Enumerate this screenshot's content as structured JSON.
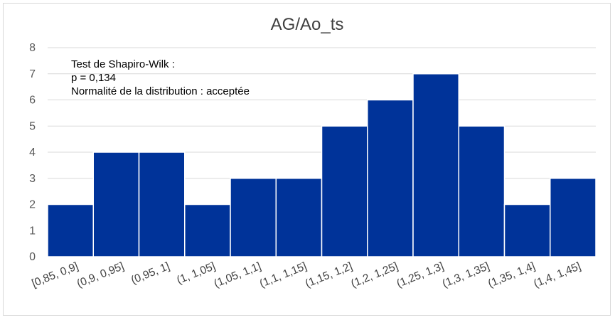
{
  "chart_data": {
    "type": "bar",
    "title": "AG/Ao_ts",
    "categories": [
      "[0,85, 0,9]",
      "(0,9, 0,95]",
      "(0,95, 1]",
      "(1, 1,05]",
      "(1,05, 1,1]",
      "(1,1, 1,15]",
      "(1,15, 1,2]",
      "(1,2, 1,25]",
      "(1,25, 1,3]",
      "(1,3, 1,35]",
      "(1,35, 1,4]",
      "(1,4, 1,45]"
    ],
    "values": [
      2,
      4,
      4,
      2,
      3,
      3,
      5,
      6,
      7,
      5,
      2,
      3
    ],
    "ylim": [
      0,
      8
    ],
    "yticks": [
      0,
      1,
      2,
      3,
      4,
      5,
      6,
      7,
      8
    ],
    "grid": true,
    "bar_color": "#003399",
    "annotation": {
      "line1": "Test de Shapiro-Wilk :",
      "line2": "p = 0,134",
      "line3": "Normalité de la distribution : acceptée"
    }
  }
}
